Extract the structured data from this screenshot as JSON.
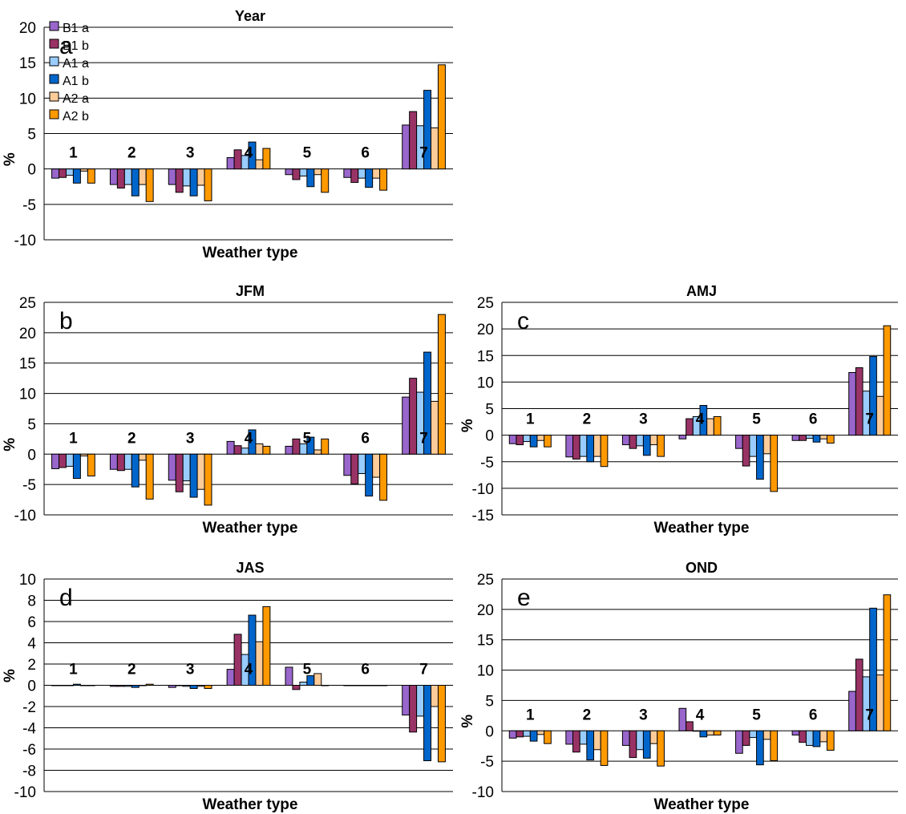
{
  "figure": {
    "legend": [
      {
        "label": "B1 a",
        "color": "#9966CC"
      },
      {
        "label": "B1 b",
        "color": "#993366"
      },
      {
        "label": "A1 a",
        "color": "#99CCFF"
      },
      {
        "label": "A1 b",
        "color": "#0066CC"
      },
      {
        "label": "A2 a",
        "color": "#FFCC99"
      },
      {
        "label": "A2 b",
        "color": "#FF9900"
      }
    ]
  },
  "chart_data": [
    {
      "panel": "a",
      "type": "bar",
      "title": "Year",
      "xlabel": "Weather type",
      "ylabel": "%",
      "categories": [
        "1",
        "2",
        "3",
        "4",
        "5",
        "6",
        "7"
      ],
      "ylim": [
        -10,
        20
      ],
      "ticks": [
        -10,
        -5,
        0,
        5,
        10,
        15,
        20
      ],
      "grid": true,
      "legend": "top-left",
      "series": [
        {
          "name": "B1 a",
          "values": [
            -1.3,
            -2.2,
            -2.2,
            1.6,
            -0.8,
            -1.2,
            6.2
          ]
        },
        {
          "name": "B1 b",
          "values": [
            -1.2,
            -2.7,
            -3.3,
            2.7,
            -1.5,
            -1.9,
            8.1
          ]
        },
        {
          "name": "A1 a",
          "values": [
            -0.9,
            -2.2,
            -2.4,
            1.9,
            -1.0,
            -1.3,
            6.1
          ]
        },
        {
          "name": "A1 b",
          "values": [
            -2.0,
            -3.8,
            -3.8,
            3.8,
            -2.5,
            -2.6,
            11.1
          ]
        },
        {
          "name": "A2 a",
          "values": [
            -0.3,
            -2.2,
            -2.3,
            1.3,
            -0.8,
            -1.3,
            5.8
          ]
        },
        {
          "name": "A2 b",
          "values": [
            -2.0,
            -4.6,
            -4.5,
            2.9,
            -3.3,
            -3.0,
            14.7
          ]
        }
      ]
    },
    {
      "panel": "b",
      "type": "bar",
      "title": "JFM",
      "xlabel": "Weather type",
      "ylabel": "%",
      "categories": [
        "1",
        "2",
        "3",
        "4",
        "5",
        "6",
        "7"
      ],
      "ylim": [
        -10,
        25
      ],
      "ticks": [
        -10,
        -5,
        0,
        5,
        10,
        15,
        20,
        25
      ],
      "grid": true,
      "series": [
        {
          "name": "B1 a",
          "values": [
            -2.4,
            -2.5,
            -4.3,
            2.1,
            1.3,
            -3.5,
            9.4
          ]
        },
        {
          "name": "B1 b",
          "values": [
            -2.2,
            -2.7,
            -6.2,
            1.4,
            2.5,
            -4.9,
            12.5
          ]
        },
        {
          "name": "A1 a",
          "values": [
            -2.0,
            -2.5,
            -4.4,
            1.0,
            1.7,
            -3.2,
            10.2
          ]
        },
        {
          "name": "A1 b",
          "values": [
            -4.0,
            -5.4,
            -7.1,
            4.0,
            2.8,
            -6.9,
            16.8
          ]
        },
        {
          "name": "A2 a",
          "values": [
            -0.3,
            -1.0,
            -5.8,
            1.7,
            0.7,
            -3.8,
            8.7
          ]
        },
        {
          "name": "A2 b",
          "values": [
            -3.6,
            -7.4,
            -8.4,
            1.3,
            2.5,
            -7.6,
            23.0
          ]
        }
      ]
    },
    {
      "panel": "c",
      "type": "bar",
      "title": "AMJ",
      "xlabel": "Weather type",
      "ylabel": "%",
      "categories": [
        "1",
        "2",
        "3",
        "4",
        "5",
        "6",
        "7"
      ],
      "ylim": [
        -15,
        25
      ],
      "ticks": [
        -15,
        -10,
        -5,
        0,
        5,
        10,
        15,
        20,
        25
      ],
      "grid": true,
      "series": [
        {
          "name": "B1 a",
          "values": [
            -1.6,
            -4.1,
            -1.8,
            -0.7,
            -2.5,
            -1.0,
            11.8
          ]
        },
        {
          "name": "B1 b",
          "values": [
            -1.8,
            -4.5,
            -2.5,
            3.1,
            -5.8,
            -1.0,
            12.7
          ]
        },
        {
          "name": "A1 a",
          "values": [
            -1.2,
            -4.0,
            -2.0,
            3.5,
            -4.0,
            -0.6,
            8.3
          ]
        },
        {
          "name": "A1 b",
          "values": [
            -2.2,
            -5.0,
            -3.8,
            5.6,
            -8.3,
            -1.3,
            14.8
          ]
        },
        {
          "name": "A2 a",
          "values": [
            -1.0,
            -4.0,
            -1.8,
            3.1,
            -3.5,
            -0.7,
            7.3
          ]
        },
        {
          "name": "A2 b",
          "values": [
            -2.2,
            -5.9,
            -4.0,
            3.5,
            -10.6,
            -1.5,
            20.6
          ]
        }
      ]
    },
    {
      "panel": "d",
      "type": "bar",
      "title": "JAS",
      "xlabel": "Weather type",
      "ylabel": "%",
      "categories": [
        "1",
        "2",
        "3",
        "4",
        "5",
        "6",
        "7"
      ],
      "ylim": [
        -10,
        10
      ],
      "ticks": [
        -10,
        -8,
        -6,
        -4,
        -2,
        0,
        2,
        4,
        6,
        8,
        10
      ],
      "grid": true,
      "series": [
        {
          "name": "B1 a",
          "values": [
            0.0,
            -0.1,
            -0.2,
            1.5,
            1.7,
            0.0,
            -2.8
          ]
        },
        {
          "name": "B1 b",
          "values": [
            0.0,
            -0.1,
            0.0,
            4.8,
            -0.4,
            0.0,
            -4.4
          ]
        },
        {
          "name": "A1 a",
          "values": [
            0.0,
            -0.1,
            -0.1,
            2.9,
            0.3,
            0.0,
            -2.9
          ]
        },
        {
          "name": "A1 b",
          "values": [
            0.1,
            -0.2,
            -0.3,
            6.6,
            0.9,
            0.0,
            -7.1
          ]
        },
        {
          "name": "A2 a",
          "values": [
            0.0,
            0.0,
            -0.1,
            4.1,
            1.1,
            0.0,
            -2.0
          ]
        },
        {
          "name": "A2 b",
          "values": [
            0.0,
            0.1,
            -0.3,
            7.4,
            0.0,
            0.0,
            -7.2
          ]
        }
      ]
    },
    {
      "panel": "e",
      "type": "bar",
      "title": "OND",
      "xlabel": "Weather type",
      "ylabel": "%",
      "categories": [
        "1",
        "2",
        "3",
        "4",
        "5",
        "6",
        "7"
      ],
      "ylim": [
        -10,
        25
      ],
      "ticks": [
        -10,
        -5,
        0,
        5,
        10,
        15,
        20,
        25
      ],
      "grid": true,
      "series": [
        {
          "name": "B1 a",
          "values": [
            -1.2,
            -2.2,
            -2.4,
            3.7,
            -3.7,
            -0.7,
            6.5
          ]
        },
        {
          "name": "B1 b",
          "values": [
            -1.0,
            -3.5,
            -4.4,
            1.5,
            -2.4,
            -1.9,
            11.8
          ]
        },
        {
          "name": "A1 a",
          "values": [
            -0.9,
            -2.2,
            -3.1,
            0.0,
            -1.1,
            -2.4,
            8.9
          ]
        },
        {
          "name": "A1 b",
          "values": [
            -1.7,
            -4.8,
            -4.5,
            -1.0,
            -5.6,
            -2.6,
            20.2
          ]
        },
        {
          "name": "A2 a",
          "values": [
            -0.6,
            -3.1,
            -2.1,
            -0.7,
            -1.4,
            -1.8,
            9.2
          ]
        },
        {
          "name": "A2 b",
          "values": [
            -2.1,
            -5.7,
            -5.8,
            -0.7,
            -4.9,
            -3.2,
            22.4
          ]
        }
      ]
    }
  ]
}
